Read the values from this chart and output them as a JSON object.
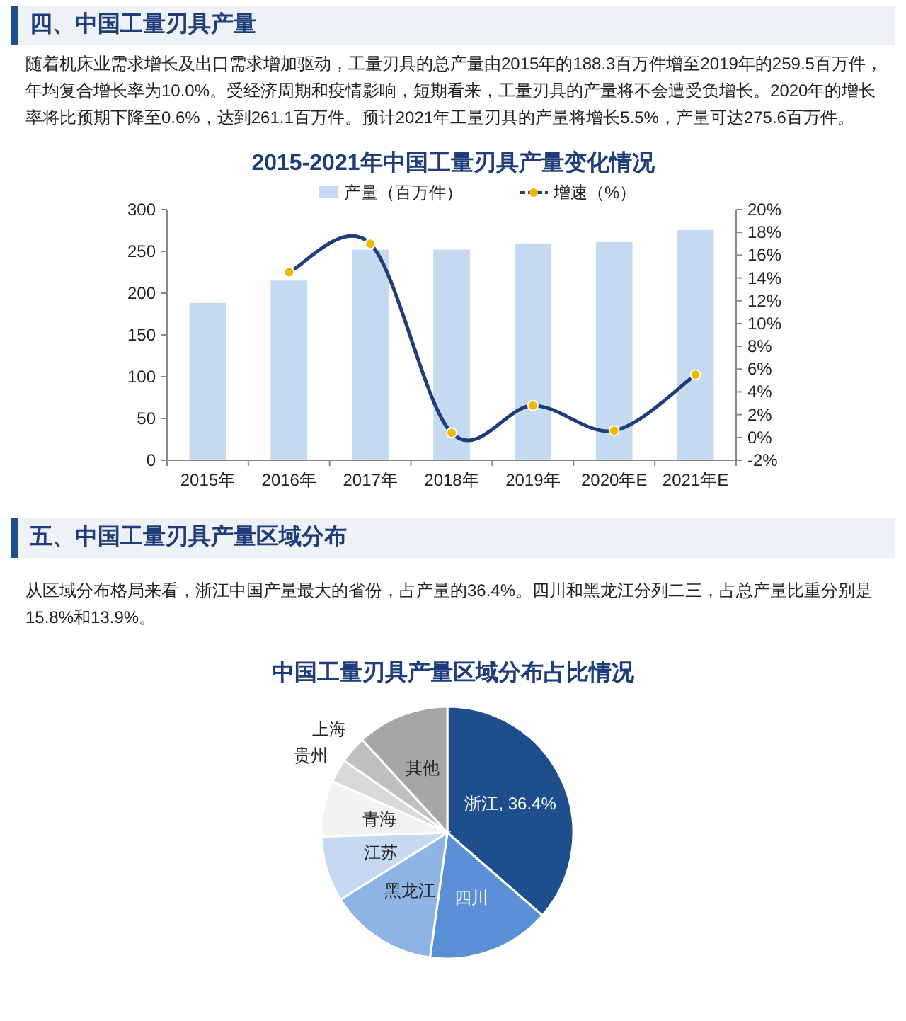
{
  "chart_data": [
    {
      "type": "bar",
      "title": "2015-2021年中国工量刃具产量变化情况",
      "annotations": [
        "四、中国工量刃具产量",
        "随着机床业需求增长及出口需求增加驱动，工量刃具的总产量由2015年的188.3百万件增至2019年的259.5百万件，年均复合增长率为10.0%。受经济周期和疫情影响，短期看来，工量刃具的产量将不会遭受负增长。2020年的增长率将比预期下降至0.6%，达到261.1百万件。预计2021年工量刃具的产量将增长5.5%，产量可达275.6百万件。"
      ],
      "categories": [
        "2015年",
        "2016年",
        "2017年",
        "2018年",
        "2019年",
        "2020年E",
        "2021年E"
      ],
      "series": [
        {
          "name": "产量（百万件）",
          "type": "bar",
          "color": "#c5d9f1",
          "values": [
            188.3,
            215,
            252,
            252,
            259.5,
            261.1,
            275.6
          ]
        },
        {
          "name": "增速（%）",
          "type": "line",
          "axis": "y2",
          "color": "#1f3d7a",
          "values": [
            null,
            14.5,
            17.0,
            0.4,
            2.8,
            0.6,
            5.5
          ]
        }
      ],
      "ylim": [
        0,
        300
      ],
      "yticks": [
        0,
        50,
        100,
        150,
        200,
        250,
        300
      ],
      "y2lim": [
        -2,
        20
      ],
      "y2ticks": [
        {
          "value": -2,
          "label": "-2%"
        },
        {
          "value": 0,
          "label": "0%"
        },
        {
          "value": 2,
          "label": "2%"
        },
        {
          "value": 4,
          "label": "4%"
        },
        {
          "value": 6,
          "label": "6%"
        },
        {
          "value": 8,
          "label": "8%"
        },
        {
          "value": 10,
          "label": "10%"
        },
        {
          "value": 12,
          "label": "12%"
        },
        {
          "value": 14,
          "label": "14%"
        },
        {
          "value": 16,
          "label": "16%"
        },
        {
          "value": 18,
          "label": "18%"
        },
        {
          "value": 20,
          "label": "20%"
        }
      ],
      "grid": false,
      "legend": "top",
      "marker": "circle"
    },
    {
      "type": "pie",
      "title": "中国工量刃具产量区域分布占比情况",
      "annotations": [
        "五、中国工量刃具产量区域分布",
        "从区域分布格局来看，浙江中国产量最大的省份，占产量的36.4%。四川和黑龙江分列二三，占总产量比重分别是15.8%和13.9%。"
      ],
      "categories": [
        "浙江",
        "四川",
        "黑龙江",
        "江苏",
        "青海",
        "贵州",
        "上海",
        "其他"
      ],
      "values": [
        36.4,
        15.8,
        13.9,
        8.4,
        7.2,
        3.0,
        3.5,
        11.8
      ],
      "value_labels": [
        "36.4%",
        null,
        null,
        null,
        null,
        null,
        null,
        null
      ],
      "colors": [
        "#1f4e8c",
        "#5b8fd6",
        "#8eb4e3",
        "#c6d9f1",
        "#f2f2f2",
        "#d9d9d9",
        "#bfbfbf",
        "#a6a6a6"
      ]
    }
  ]
}
